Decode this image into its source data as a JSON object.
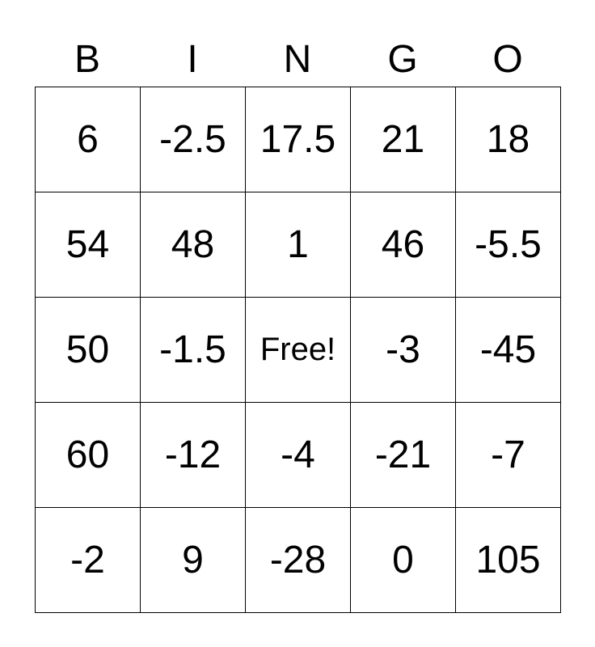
{
  "header": [
    "B",
    "I",
    "N",
    "G",
    "O"
  ],
  "rows": [
    [
      "6",
      "-2.5",
      "17.5",
      "21",
      "18"
    ],
    [
      "54",
      "48",
      "1",
      "46",
      "-5.5"
    ],
    [
      "50",
      "-1.5",
      "Free!",
      "-3",
      "-45"
    ],
    [
      "60",
      "-12",
      "-4",
      "-21",
      "-7"
    ],
    [
      "-2",
      "9",
      "-28",
      "0",
      "105"
    ]
  ]
}
